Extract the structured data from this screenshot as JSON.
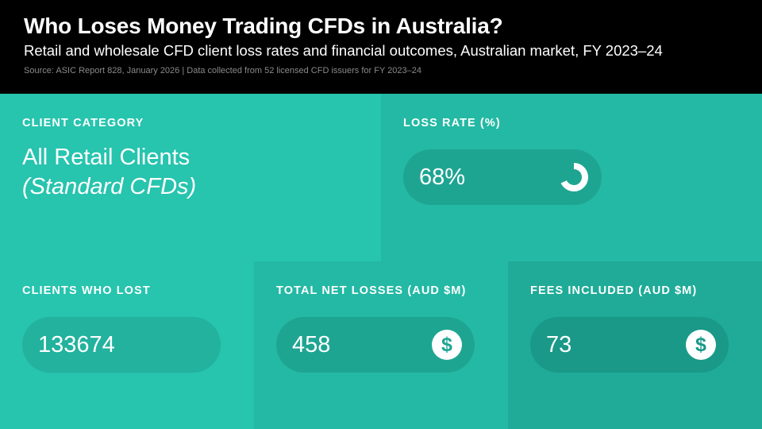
{
  "header": {
    "title": "Who Loses Money Trading CFDs in Australia?",
    "subtitle": "Retail and wholesale CFD client loss rates and financial outcomes, Australian market, FY 2023–24",
    "source": "Source: ASIC Report 828, January 2026 | Data collected from 52 licensed CFD issuers for FY 2023–24"
  },
  "category": {
    "label": "CLIENT CATEGORY",
    "main": "All Retail Clients",
    "sub": "(Standard CFDs)"
  },
  "loss_rate": {
    "label": "LOSS RATE (%)",
    "value_text": "68%",
    "fraction": 0.68,
    "icon": "donut-progress-icon"
  },
  "clients_lost": {
    "label": "CLIENTS WHO LOST",
    "value_text": "133674"
  },
  "net_losses": {
    "label": "TOTAL NET LOSSES (AUD $M)",
    "value_text": "458",
    "icon": "dollar-icon",
    "icon_glyph": "$"
  },
  "fees": {
    "label": "FEES INCLUDED (AUD $M)",
    "value_text": "73",
    "icon": "dollar-icon",
    "icon_glyph": "$"
  },
  "colors": {
    "header_bg": "#000000",
    "panel_light": "#27c4ae",
    "panel_mid": "#24b9a4",
    "panel_dark": "#1fab98",
    "pill": "#1ea592"
  },
  "chart_data": {
    "type": "table",
    "title": "Who Loses Money Trading CFDs in Australia?",
    "subtitle": "Retail and wholesale CFD client loss rates and financial outcomes, Australian market, FY 2023–24",
    "columns": [
      "CLIENT CATEGORY",
      "LOSS RATE (%)",
      "CLIENTS WHO LOST",
      "TOTAL NET LOSSES (AUD $M)",
      "FEES INCLUDED (AUD $M)"
    ],
    "rows": [
      [
        "All Retail Clients (Standard CFDs)",
        68,
        133674,
        458,
        73
      ]
    ]
  }
}
